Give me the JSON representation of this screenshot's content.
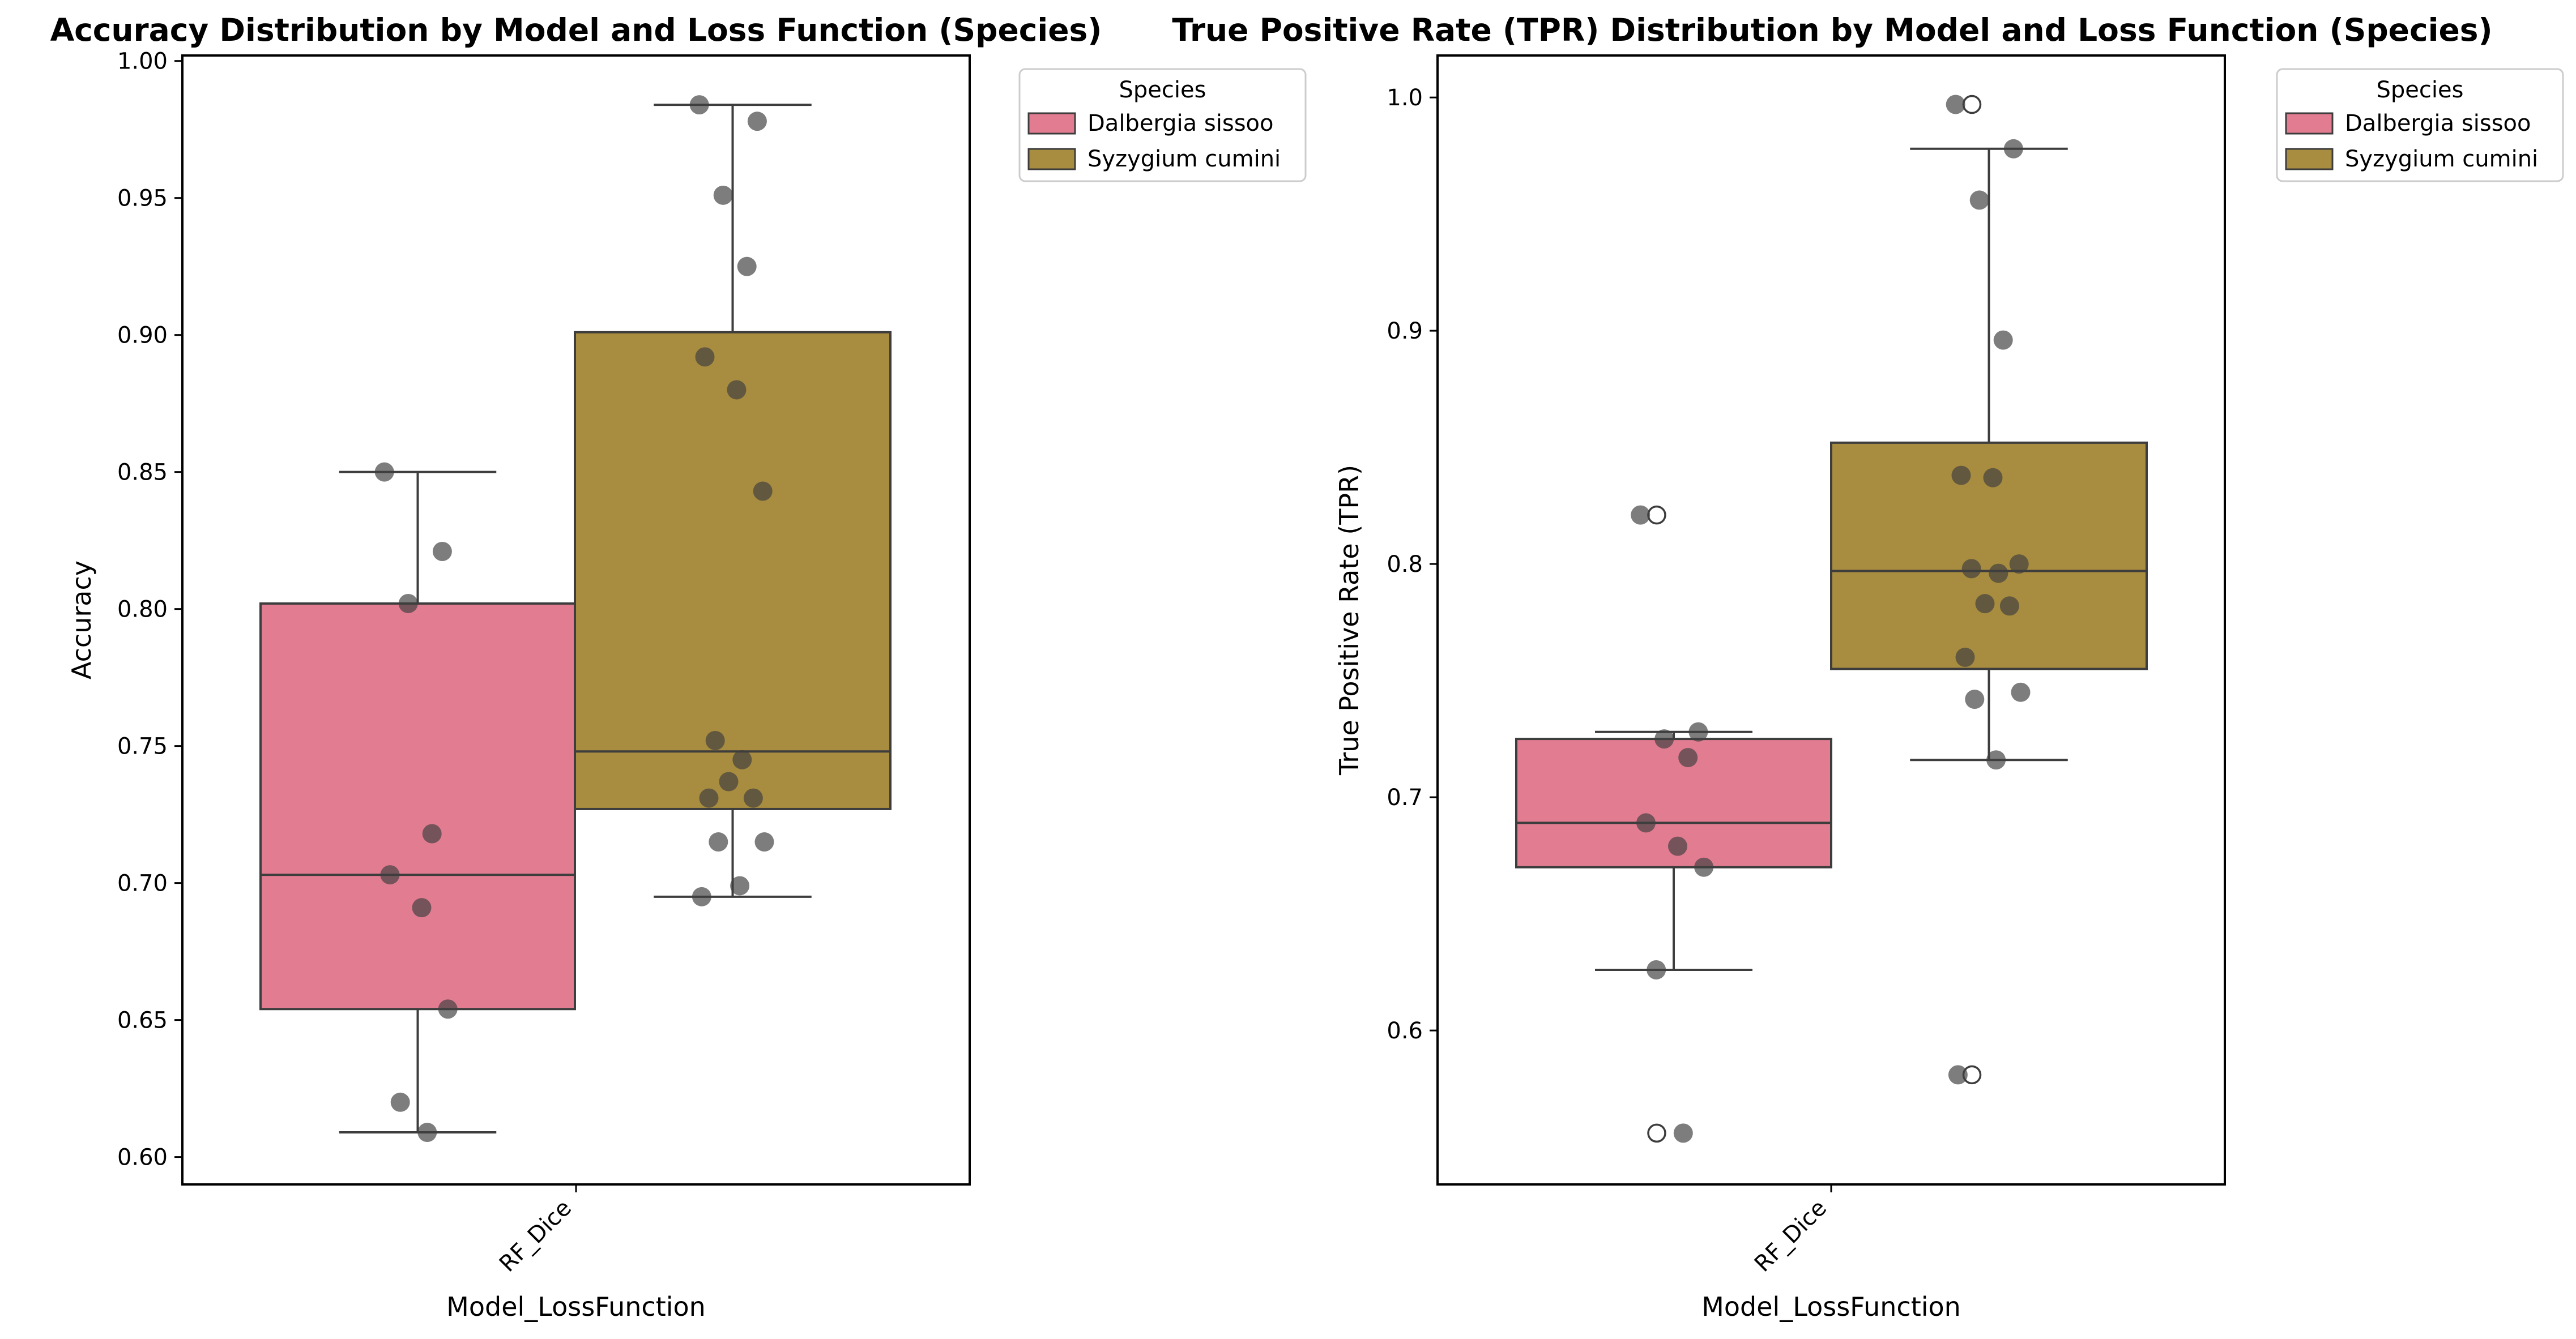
{
  "chart_data": [
    {
      "type": "box",
      "title": "Accuracy Distribution by Model and Loss Function (Species)",
      "xlabel": "Model_LossFunction",
      "ylabel": "Accuracy",
      "categories": [
        "RF_Dice"
      ],
      "ylim": [
        0.59,
        1.002
      ],
      "yticks": [
        "0.60",
        "0.65",
        "0.70",
        "0.75",
        "0.80",
        "0.85",
        "0.90",
        "0.95",
        "1.00"
      ],
      "legend": {
        "title": "Species",
        "placement": "outside upper right"
      },
      "series": [
        {
          "name": "Dalbergia sissoo",
          "color": "#e27c91",
          "box": {
            "q1": 0.654,
            "median": 0.703,
            "q3": 0.802,
            "whisker_low": 0.609,
            "whisker_high": 0.85
          },
          "outliers": [],
          "points": [
            0.85,
            0.821,
            0.802,
            0.718,
            0.703,
            0.691,
            0.654,
            0.62,
            0.609
          ]
        },
        {
          "name": "Syzygium cumini",
          "color": "#a88c3f",
          "box": {
            "q1": 0.727,
            "median": 0.748,
            "q3": 0.901,
            "whisker_low": 0.695,
            "whisker_high": 0.984
          },
          "outliers": [],
          "points": [
            0.984,
            0.978,
            0.951,
            0.925,
            0.892,
            0.88,
            0.843,
            0.752,
            0.745,
            0.737,
            0.731,
            0.731,
            0.715,
            0.715,
            0.699,
            0.695
          ]
        }
      ]
    },
    {
      "type": "box",
      "title": "True Positive Rate (TPR) Distribution by Model and Loss Function (Species)",
      "xlabel": "Model_LossFunction",
      "ylabel": "True Positive Rate (TPR)",
      "categories": [
        "RF_Dice"
      ],
      "ylim": [
        0.534,
        1.018
      ],
      "yticks": [
        "0.6",
        "0.7",
        "0.8",
        "0.9",
        "1.0"
      ],
      "legend": {
        "title": "Species",
        "placement": "outside upper right"
      },
      "series": [
        {
          "name": "Dalbergia sissoo",
          "color": "#e27c91",
          "box": {
            "q1": 0.67,
            "median": 0.689,
            "q3": 0.725,
            "whisker_low": 0.626,
            "whisker_high": 0.728
          },
          "outliers": [
            0.821,
            0.556
          ],
          "points": [
            0.821,
            0.728,
            0.725,
            0.717,
            0.689,
            0.679,
            0.67,
            0.626,
            0.556
          ]
        },
        {
          "name": "Syzygium cumini",
          "color": "#a88c3f",
          "box": {
            "q1": 0.755,
            "median": 0.797,
            "q3": 0.852,
            "whisker_low": 0.716,
            "whisker_high": 0.978
          },
          "outliers": [
            0.997,
            0.581
          ],
          "points": [
            0.997,
            0.978,
            0.956,
            0.896,
            0.838,
            0.837,
            0.8,
            0.798,
            0.796,
            0.783,
            0.782,
            0.76,
            0.745,
            0.742,
            0.716,
            0.581
          ]
        }
      ]
    }
  ]
}
